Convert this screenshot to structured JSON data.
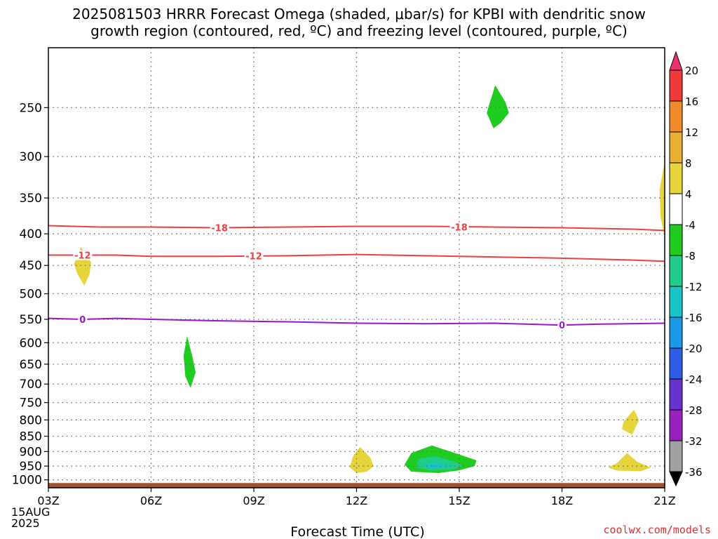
{
  "title_line1": "2025081503 HRRR Forecast Omega (shaded, μbar/s) for KPBI with dendritic snow",
  "title_line2": "growth region (contoured, red, ºC) and freezing level (contoured, purple, ºC)",
  "credit": "coolwx.com/models",
  "chart_data": {
    "type": "time-height-cross-section",
    "xlabel": "Forecast Time (UTC)",
    "x_ticks": [
      "03Z",
      "06Z",
      "09Z",
      "12Z",
      "15Z",
      "18Z",
      "21Z"
    ],
    "x_hours": [
      3,
      6,
      9,
      12,
      15,
      18,
      21
    ],
    "date_label": [
      "15AUG",
      "2025"
    ],
    "y_ticks": [
      250,
      300,
      350,
      400,
      450,
      500,
      550,
      600,
      650,
      700,
      750,
      800,
      850,
      900,
      950,
      1000
    ],
    "y_range_hpa": [
      200,
      1030
    ],
    "y_scale": "log",
    "grid": true,
    "colorbar": {
      "labels": [
        "20",
        "16",
        "12",
        "8",
        "4",
        "-4",
        "-8",
        "-12",
        "-16",
        "-20",
        "-24",
        "-28",
        "-32",
        "-36"
      ],
      "colors": [
        "#e8336f",
        "#ee3a3a",
        "#f08a2a",
        "#e8b030",
        "#e6d43c",
        "#ffffff",
        "#1fcc1f",
        "#1fcc8a",
        "#18c4c4",
        "#1a99e6",
        "#2e5ce6",
        "#6633cc",
        "#9a1fbf",
        "#a0a0a0",
        "#000000"
      ]
    },
    "contours": [
      {
        "label": "-18",
        "color": "#ee4040",
        "points": [
          [
            3,
            388
          ],
          [
            4.5,
            390
          ],
          [
            6,
            390
          ],
          [
            8,
            391
          ],
          [
            10,
            390
          ],
          [
            12,
            389
          ],
          [
            14,
            389
          ],
          [
            16,
            390
          ],
          [
            18,
            391
          ],
          [
            20,
            393
          ],
          [
            21,
            395
          ]
        ]
      },
      {
        "label": "-12",
        "color": "#ee4040",
        "points": [
          [
            3,
            433
          ],
          [
            4,
            433
          ],
          [
            5,
            433
          ],
          [
            6,
            435
          ],
          [
            8,
            435
          ],
          [
            10,
            434
          ],
          [
            12,
            432
          ],
          [
            14,
            434
          ],
          [
            16,
            436
          ],
          [
            18,
            438
          ],
          [
            20,
            441
          ],
          [
            21,
            443
          ]
        ]
      },
      {
        "label": "0",
        "color": "#9a18c8",
        "points": [
          [
            3,
            548
          ],
          [
            4,
            550
          ],
          [
            5,
            548
          ],
          [
            6,
            550
          ],
          [
            8,
            553
          ],
          [
            10,
            555
          ],
          [
            12,
            558
          ],
          [
            14,
            559
          ],
          [
            16,
            558
          ],
          [
            18,
            562
          ],
          [
            19,
            560
          ],
          [
            21,
            558
          ]
        ]
      }
    ],
    "contour_label_positions": [
      {
        "text": "-18",
        "x": 8.0,
        "p": 391,
        "color": "#ee4040"
      },
      {
        "text": "-18",
        "x": 15.0,
        "p": 390,
        "color": "#ee4040"
      },
      {
        "text": "-12",
        "x": 4.0,
        "p": 433,
        "color": "#ee4040"
      },
      {
        "text": "-12",
        "x": 9.0,
        "p": 434,
        "color": "#ee4040"
      },
      {
        "text": "0",
        "x": 4.0,
        "p": 550,
        "color": "#9a18c8"
      },
      {
        "text": "0",
        "x": 18.0,
        "p": 562,
        "color": "#9a18c8"
      }
    ],
    "shaded_regions": [
      {
        "name": "yellow-blob-04z-450",
        "fill": "#e6d43c",
        "points": [
          [
            3.95,
            420
          ],
          [
            4.25,
            445
          ],
          [
            4.2,
            465
          ],
          [
            4.05,
            485
          ],
          [
            3.85,
            465
          ],
          [
            3.75,
            448
          ]
        ]
      },
      {
        "name": "green-blob-07z-650",
        "fill": "#1fcc1f",
        "points": [
          [
            7.05,
            585
          ],
          [
            7.2,
            630
          ],
          [
            7.3,
            670
          ],
          [
            7.15,
            710
          ],
          [
            7.0,
            680
          ],
          [
            6.95,
            630
          ]
        ]
      },
      {
        "name": "green-blob-16z-250",
        "fill": "#1fcc1f",
        "points": [
          [
            16.05,
            230
          ],
          [
            16.35,
            245
          ],
          [
            16.45,
            255
          ],
          [
            16.2,
            265
          ],
          [
            16.0,
            270
          ],
          [
            15.8,
            255
          ]
        ]
      },
      {
        "name": "yellow-blob-21z-350",
        "fill": "#e6d43c",
        "points": [
          [
            21.0,
            305
          ],
          [
            20.85,
            340
          ],
          [
            20.88,
            375
          ],
          [
            21.0,
            405
          ]
        ]
      },
      {
        "name": "yellow-blob-12z-950",
        "fill": "#e6d43c",
        "points": [
          [
            12.1,
            885
          ],
          [
            12.4,
            920
          ],
          [
            12.5,
            950
          ],
          [
            12.3,
            970
          ],
          [
            12.0,
            975
          ],
          [
            11.8,
            955
          ],
          [
            11.9,
            915
          ]
        ]
      },
      {
        "name": "green-blob-14z-950",
        "fill": "#1fcc1f",
        "points": [
          [
            14.2,
            880
          ],
          [
            15.0,
            910
          ],
          [
            15.5,
            930
          ],
          [
            15.45,
            950
          ],
          [
            15.0,
            965
          ],
          [
            14.4,
            975
          ],
          [
            13.6,
            970
          ],
          [
            13.4,
            945
          ],
          [
            13.6,
            905
          ]
        ]
      },
      {
        "name": "teal-blob-14z-950",
        "fill": "#1fcc8a",
        "points": [
          [
            14.3,
            915
          ],
          [
            14.9,
            935
          ],
          [
            15.1,
            950
          ],
          [
            14.8,
            963
          ],
          [
            14.2,
            966
          ],
          [
            13.75,
            955
          ],
          [
            13.8,
            925
          ]
        ]
      },
      {
        "name": "cyan-blob-14z-950",
        "fill": "#18c4c4",
        "points": [
          [
            14.3,
            935
          ],
          [
            14.65,
            945
          ],
          [
            14.55,
            955
          ],
          [
            14.1,
            958
          ],
          [
            14.0,
            948
          ]
        ]
      },
      {
        "name": "yellow-blob-20z-800",
        "fill": "#e6d43c",
        "points": [
          [
            20.1,
            770
          ],
          [
            20.25,
            800
          ],
          [
            20.05,
            845
          ],
          [
            19.75,
            828
          ],
          [
            19.8,
            805
          ]
        ]
      },
      {
        "name": "yellow-blob-20z-950",
        "fill": "#e6d43c",
        "points": [
          [
            19.9,
            905
          ],
          [
            20.2,
            935
          ],
          [
            20.6,
            955
          ],
          [
            20.3,
            968
          ],
          [
            19.6,
            966
          ],
          [
            19.35,
            955
          ],
          [
            19.6,
            940
          ]
        ]
      }
    ],
    "ground_band": {
      "fill": "#a0522d",
      "p_top": 1012,
      "p_bottom": 1030
    }
  }
}
